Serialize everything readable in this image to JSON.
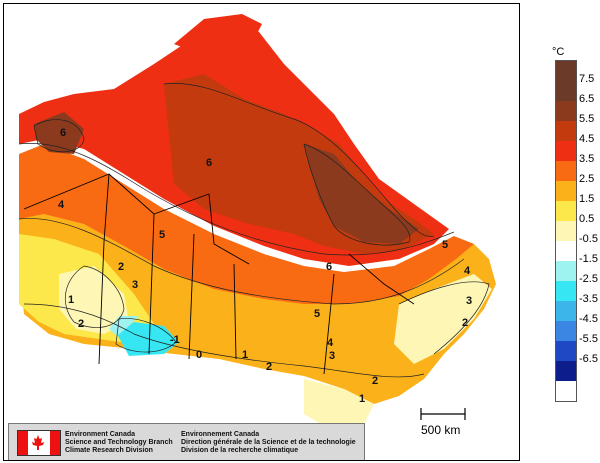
{
  "map": {
    "contour_labels": [
      "6",
      "6",
      "6",
      "5",
      "5",
      "5",
      "4",
      "4",
      "4",
      "3",
      "3",
      "3",
      "2",
      "2",
      "2",
      "2",
      "2",
      "1",
      "1",
      "1",
      "0",
      "-1"
    ]
  },
  "legend": {
    "unit": "°C",
    "items": [
      {
        "label": "7.5",
        "color": "#6b3a28"
      },
      {
        "label": "6.5",
        "color": "#8b3a1e"
      },
      {
        "label": "5.5",
        "color": "#c23a0e"
      },
      {
        "label": "4.5",
        "color": "#ee2f14"
      },
      {
        "label": "3.5",
        "color": "#f86b13"
      },
      {
        "label": "2.5",
        "color": "#fbb11a"
      },
      {
        "label": "1.5",
        "color": "#fce84a"
      },
      {
        "label": "0.5",
        "color": "#fdf6b5"
      },
      {
        "label": "-0.5",
        "color": "#ffffff"
      },
      {
        "label": "-1.5",
        "color": "#9ef3f0"
      },
      {
        "label": "-2.5",
        "color": "#36e6f2"
      },
      {
        "label": "-3.5",
        "color": "#3cb6ea"
      },
      {
        "label": "-4.5",
        "color": "#3a86e2"
      },
      {
        "label": "-5.5",
        "color": "#1e48c4"
      },
      {
        "label": "-6.5",
        "color": "#0d1e8c"
      }
    ],
    "top_color": "#6b3a28"
  },
  "scale": {
    "label": "500 km"
  },
  "credit": {
    "en_line1": "Environment Canada",
    "en_line2": "Science and Technology Branch",
    "en_line3": "Climate Research Division",
    "fr_line1": "Environnement Canada",
    "fr_line2": "Direction générale de la Science et de la technologie",
    "fr_line3": "Division de la recherche climatique"
  }
}
